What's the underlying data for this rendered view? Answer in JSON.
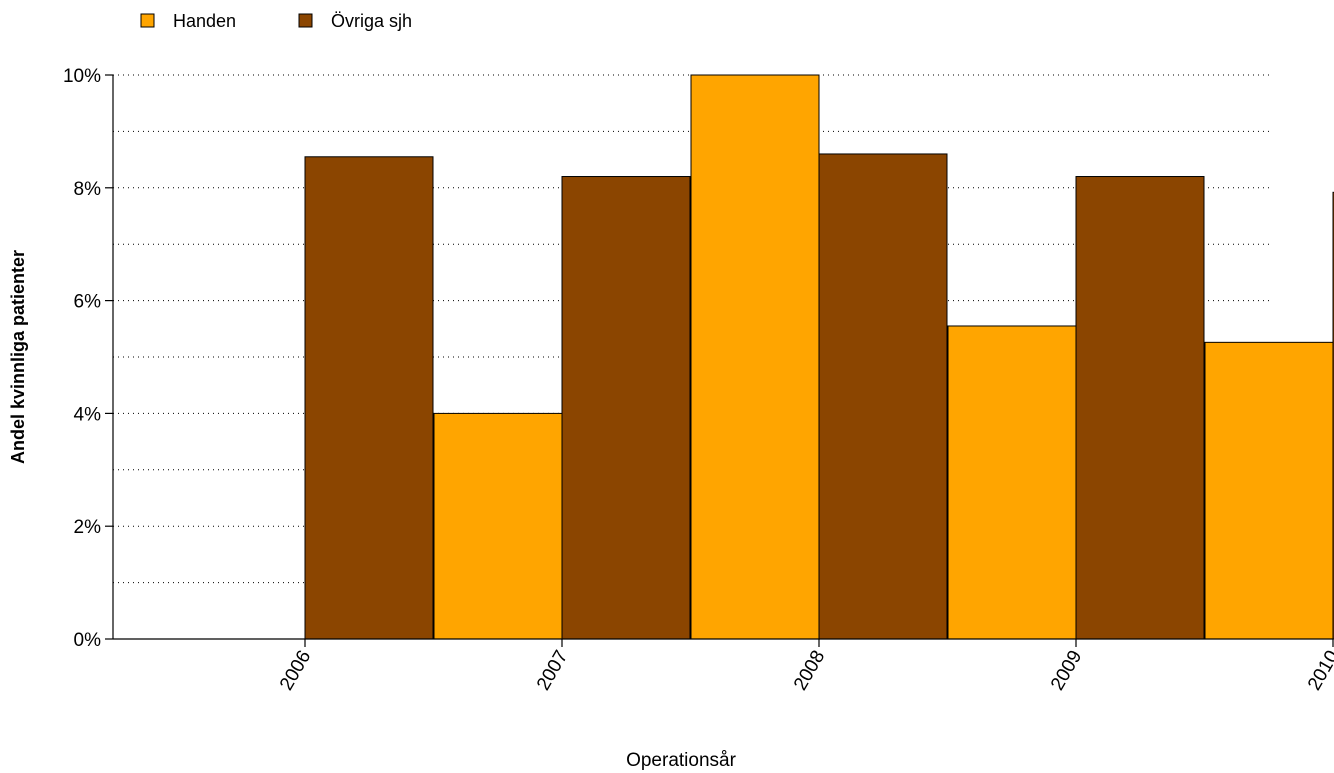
{
  "chart_data": {
    "type": "bar",
    "categories": [
      "2006",
      "2007",
      "2008",
      "2009",
      "2010"
    ],
    "series": [
      {
        "name": "Handen",
        "color": "#FFA500",
        "values": [
          0,
          4.0,
          10.0,
          5.55,
          5.26
        ]
      },
      {
        "name": "Övriga sjh",
        "color": "#8B4500",
        "values": [
          8.55,
          8.2,
          8.6,
          8.2,
          7.92
        ]
      }
    ],
    "xlabel": "Operationsår",
    "ylabel": "Andel kvinnliga patienter",
    "ylim": [
      0,
      10
    ],
    "yticks": [
      0,
      2,
      4,
      6,
      8,
      10
    ],
    "ytick_labels": [
      "0%",
      "2%",
      "4%",
      "6%",
      "8%",
      "10%"
    ],
    "grid": "dotted horizontal",
    "legend_position": "top-left"
  }
}
